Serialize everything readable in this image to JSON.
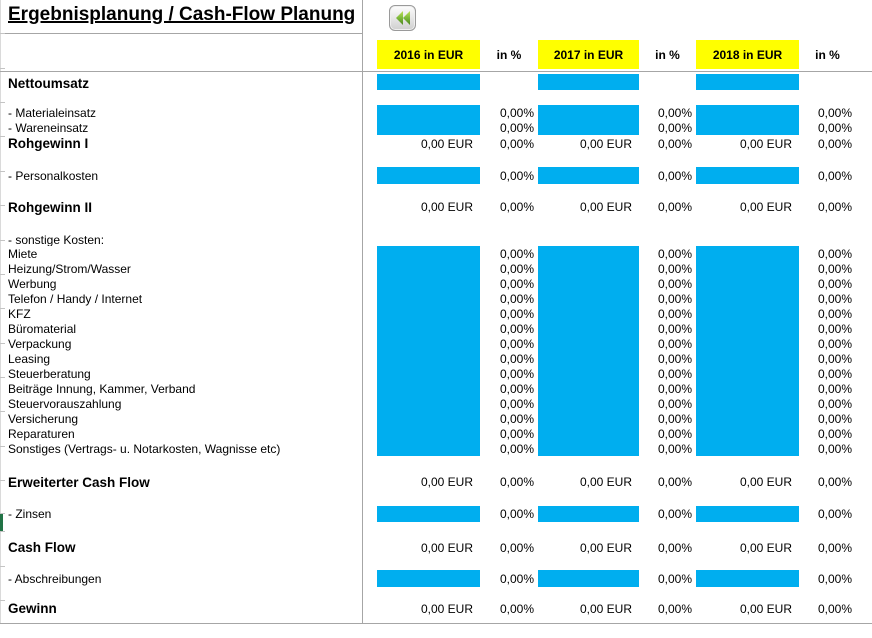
{
  "title": "Ergebnisplanung / Cash-Flow Planung",
  "toolbar": {
    "back_button_icon": "double-left-arrow"
  },
  "colors": {
    "input_cell": "#00AEEF",
    "header_bg": "#FFFF00",
    "formula_marker": "#1F8A1F",
    "selection": "#217346",
    "gridline": "#A6A6A6"
  },
  "header": {
    "year_columns": [
      {
        "label": "2016 in EUR",
        "pct_label": "in %"
      },
      {
        "label": "2017 in EUR",
        "pct_label": "in %"
      },
      {
        "label": "2018 in EUR",
        "pct_label": "in %"
      }
    ]
  },
  "rows": [
    {
      "kind": "input",
      "bold": true,
      "label": "Nettoumsatz",
      "pct": null
    },
    {
      "kind": "spacer"
    },
    {
      "kind": "input",
      "bold": false,
      "label": "- Materialeinsatz",
      "pct": [
        "0,00%",
        "0,00%",
        "0,00%"
      ]
    },
    {
      "kind": "input",
      "bold": false,
      "label": "- Wareneinsatz",
      "pct": [
        "0,00%",
        "0,00%",
        "0,00%"
      ]
    },
    {
      "kind": "calc",
      "bold": true,
      "label": "Rohgewinn I",
      "eur": [
        "0,00 EUR",
        "0,00 EUR",
        "0,00 EUR"
      ],
      "pct": [
        "0,00%",
        "0,00%",
        "0,00%"
      ],
      "markers": [
        true,
        true,
        false
      ]
    },
    {
      "kind": "spacer"
    },
    {
      "kind": "input",
      "bold": false,
      "label": "- Personalkosten",
      "pct": [
        "0,00%",
        "0,00%",
        "0,00%"
      ]
    },
    {
      "kind": "spacer"
    },
    {
      "kind": "calc",
      "bold": true,
      "label": "Rohgewinn II",
      "eur": [
        "0,00 EUR",
        "0,00 EUR",
        "0,00 EUR"
      ],
      "pct": [
        "0,00%",
        "0,00%",
        "0,00%"
      ],
      "markers": [
        true,
        true,
        false
      ]
    },
    {
      "kind": "spacer"
    },
    {
      "kind": "label",
      "bold": false,
      "label": "- sonstige Kosten:"
    },
    {
      "kind": "input",
      "bold": false,
      "label": "Miete",
      "pct": [
        "0,00%",
        "0,00%",
        "0,00%"
      ]
    },
    {
      "kind": "input",
      "bold": false,
      "label": "Heizung/Strom/Wasser",
      "pct": [
        "0,00%",
        "0,00%",
        "0,00%"
      ]
    },
    {
      "kind": "input",
      "bold": false,
      "label": "Werbung",
      "pct": [
        "0,00%",
        "0,00%",
        "0,00%"
      ]
    },
    {
      "kind": "input",
      "bold": false,
      "label": "Telefon / Handy / Internet",
      "pct": [
        "0,00%",
        "0,00%",
        "0,00%"
      ]
    },
    {
      "kind": "input",
      "bold": false,
      "label": "KFZ",
      "pct": [
        "0,00%",
        "0,00%",
        "0,00%"
      ]
    },
    {
      "kind": "input",
      "bold": false,
      "label": "Büromaterial",
      "pct": [
        "0,00%",
        "0,00%",
        "0,00%"
      ]
    },
    {
      "kind": "input",
      "bold": false,
      "label": "Verpackung",
      "pct": [
        "0,00%",
        "0,00%",
        "0,00%"
      ]
    },
    {
      "kind": "input",
      "bold": false,
      "label": "Leasing",
      "pct": [
        "0,00%",
        "0,00%",
        "0,00%"
      ]
    },
    {
      "kind": "input",
      "bold": false,
      "label": "Steuerberatung",
      "pct": [
        "0,00%",
        "0,00%",
        "0,00%"
      ]
    },
    {
      "kind": "input",
      "bold": false,
      "label": "Beiträge Innung, Kammer, Verband",
      "pct": [
        "0,00%",
        "0,00%",
        "0,00%"
      ]
    },
    {
      "kind": "input",
      "bold": false,
      "label": "Steuervorauszahlung",
      "pct": [
        "0,00%",
        "0,00%",
        "0,00%"
      ]
    },
    {
      "kind": "input",
      "bold": false,
      "label": "Versicherung",
      "pct": [
        "0,00%",
        "0,00%",
        "0,00%"
      ]
    },
    {
      "kind": "input",
      "bold": false,
      "label": "Reparaturen",
      "pct": [
        "0,00%",
        "0,00%",
        "0,00%"
      ]
    },
    {
      "kind": "input",
      "bold": false,
      "label": "Sonstiges (Vertrags- u. Notarkosten, Wagnisse etc)",
      "pct": [
        "0,00%",
        "0,00%",
        "0,00%"
      ]
    },
    {
      "kind": "spacer"
    },
    {
      "kind": "calc",
      "bold": true,
      "label": "Erweiterter Cash Flow",
      "eur": [
        "0,00 EUR",
        "0,00 EUR",
        "0,00 EUR"
      ],
      "pct": [
        "0,00%",
        "0,00%",
        "0,00%"
      ],
      "markers": [
        true,
        true,
        false
      ]
    },
    {
      "kind": "spacer"
    },
    {
      "kind": "input",
      "bold": false,
      "label": "- Zinsen",
      "pct": [
        "0,00%",
        "0,00%",
        "0,00%"
      ]
    },
    {
      "kind": "spacer"
    },
    {
      "kind": "calc",
      "bold": true,
      "label": "Cash Flow",
      "eur": [
        "0,00 EUR",
        "0,00 EUR",
        "0,00 EUR"
      ],
      "pct": [
        "0,00%",
        "0,00%",
        "0,00%"
      ],
      "markers": [
        true,
        true,
        false
      ]
    },
    {
      "kind": "spacer"
    },
    {
      "kind": "input",
      "bold": false,
      "label": "- Abschreibungen",
      "pct": [
        "0,00%",
        "0,00%",
        "0,00%"
      ]
    },
    {
      "kind": "spacer"
    },
    {
      "kind": "calc",
      "bold": true,
      "label": "Gewinn",
      "eur": [
        "0,00 EUR",
        "0,00 EUR",
        "0,00 EUR"
      ],
      "pct": [
        "0,00%",
        "0,00%",
        "0,00%"
      ],
      "markers": [
        true,
        true,
        false
      ]
    }
  ]
}
